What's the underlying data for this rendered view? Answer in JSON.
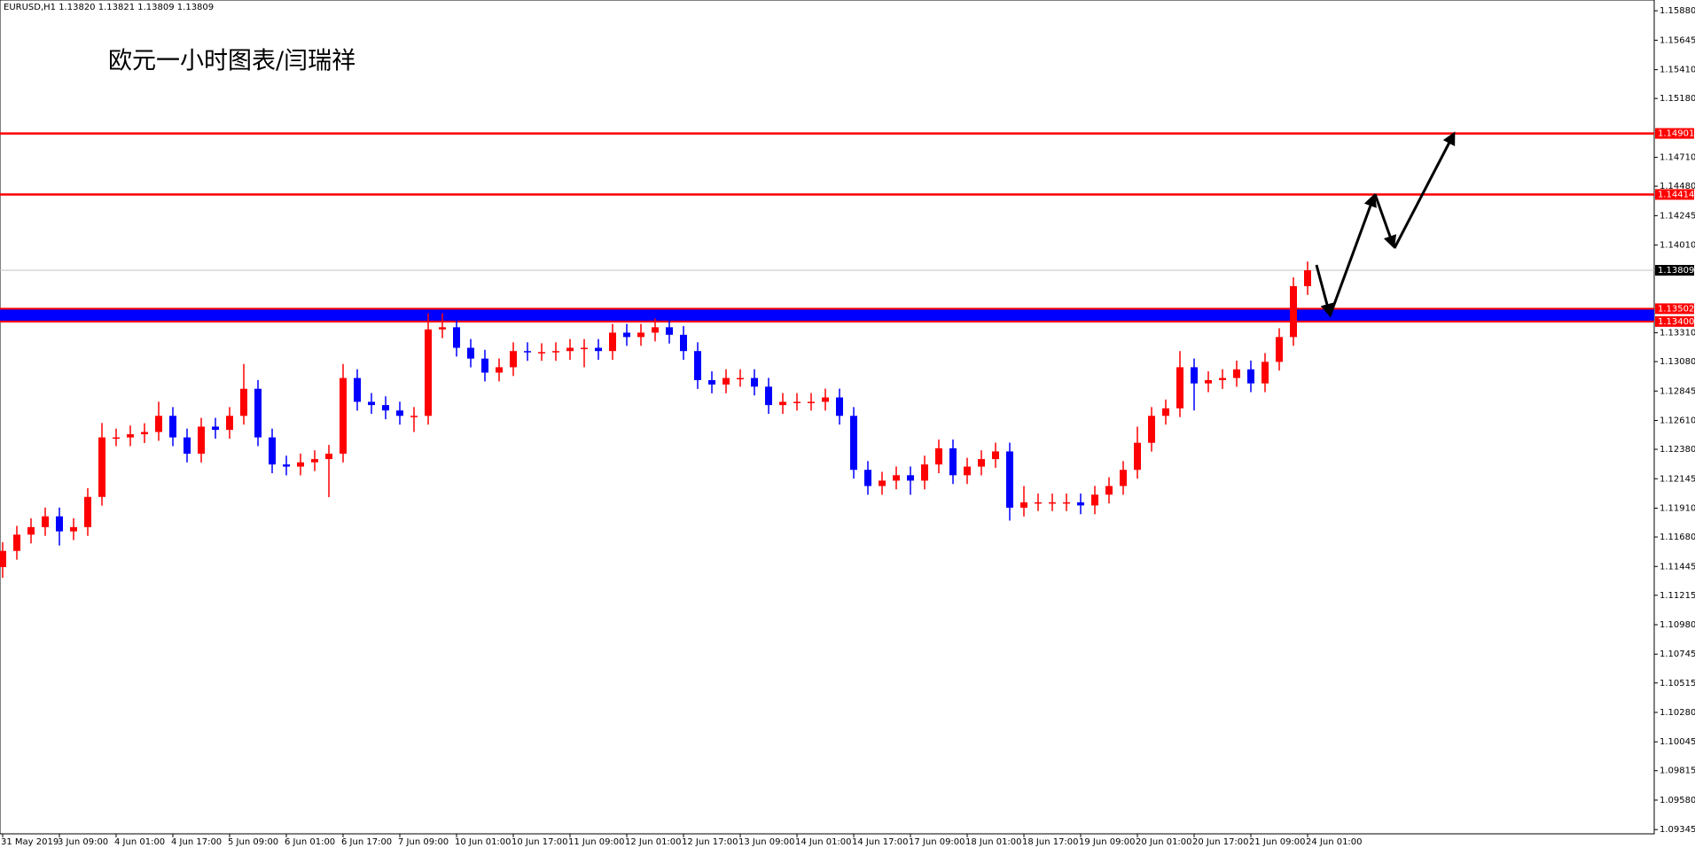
{
  "chart_data": {
    "type": "candlestick",
    "header": "EURUSD,H1  1.13820 1.13821 1.13809 1.13809",
    "annotation": "欧元一小时图表/闫瑞祥",
    "up_color": "#ff0000",
    "down_color": "#0000ff",
    "categories": [
      "31 May 2019",
      null,
      null,
      null,
      "3 Jun 09:00",
      null,
      null,
      null,
      "4 Jun 01:00",
      null,
      null,
      null,
      "4 Jun 17:00",
      null,
      null,
      null,
      "5 Jun 09:00",
      null,
      null,
      null,
      "6 Jun 01:00",
      null,
      null,
      null,
      "6 Jun 17:00",
      null,
      null,
      null,
      "7 Jun 09:00",
      null,
      null,
      null,
      "10 Jun 01:00",
      null,
      null,
      null,
      "10 Jun 17:00",
      null,
      null,
      null,
      "11 Jun 09:00",
      null,
      null,
      null,
      "12 Jun 01:00",
      null,
      null,
      null,
      "12 Jun 17:00",
      null,
      null,
      null,
      "13 Jun 09:00",
      null,
      null,
      null,
      "14 Jun 01:00",
      null,
      null,
      null,
      "14 Jun 17:00",
      null,
      null,
      null,
      "17 Jun 09:00",
      null,
      null,
      null,
      "18 Jun 01:00",
      null,
      null,
      null,
      "18 Jun 17:00",
      null,
      null,
      null,
      "19 Jun 09:00",
      null,
      null,
      null,
      "20 Jun 01:00",
      null,
      null,
      null,
      "20 Jun 17:00",
      null,
      null,
      null,
      "21 Jun 09:00",
      null,
      null,
      null,
      "24 Jun 01:00"
    ],
    "open": [
      1.1144,
      1.11569,
      1.11699,
      1.11759,
      1.11845,
      1.11725,
      1.11759,
      1.12,
      1.12475,
      1.12475,
      1.125,
      1.12518,
      1.12647,
      1.12475,
      1.12345,
      1.12561,
      1.12535,
      1.12647,
      1.12863,
      1.12475,
      1.12259,
      1.12242,
      1.12276,
      1.12302,
      1.12345,
      1.12949,
      1.12759,
      1.12733,
      1.1269,
      1.12647,
      1.12647,
      1.13337,
      1.13354,
      1.1319,
      1.13104,
      1.12992,
      1.13035,
      1.13164,
      1.13156,
      1.13156,
      1.13164,
      1.1319,
      1.1319,
      1.13164,
      1.13311,
      1.13276,
      1.13311,
      1.13354,
      1.13294,
      1.13164,
      1.12932,
      1.12897,
      1.12949,
      1.12949,
      1.1288,
      1.12733,
      1.12759,
      1.12759,
      1.12759,
      1.12794,
      1.12647,
      1.12216,
      1.12087,
      1.1213,
      1.12173,
      1.1213,
      1.12259,
      1.12388,
      1.12173,
      1.12242,
      1.12302,
      1.12363,
      1.11914,
      1.11957,
      1.11957,
      1.11957,
      1.11957,
      1.11932,
      1.12018,
      1.12087,
      1.12216,
      1.12432,
      1.12647,
      1.12707,
      1.13035,
      1.12906,
      1.12932,
      1.12949,
      1.13018,
      1.12906,
      1.13078,
      1.13276,
      1.13682
    ],
    "high": [
      1.11639,
      1.11769,
      1.11829,
      1.11915,
      1.11915,
      1.11829,
      1.1207,
      1.1259,
      1.12545,
      1.1257,
      1.12588,
      1.1276,
      1.12717,
      1.12545,
      1.12631,
      1.12631,
      1.12717,
      1.13061,
      1.12933,
      1.12545,
      1.12329,
      1.12346,
      1.12372,
      1.12415,
      1.13061,
      1.13019,
      1.12829,
      1.12803,
      1.1276,
      1.12717,
      1.13466,
      1.13466,
      1.13424,
      1.1326,
      1.13174,
      1.13105,
      1.13234,
      1.13234,
      1.13226,
      1.13234,
      1.1326,
      1.1326,
      1.1326,
      1.13381,
      1.13381,
      1.13381,
      1.13424,
      1.13424,
      1.13364,
      1.13234,
      1.13002,
      1.13019,
      1.13019,
      1.13019,
      1.1295,
      1.12829,
      1.12829,
      1.12829,
      1.12864,
      1.12864,
      1.12717,
      1.12286,
      1.122,
      1.12243,
      1.12243,
      1.12329,
      1.12458,
      1.12458,
      1.12312,
      1.12372,
      1.12433,
      1.12433,
      1.12087,
      1.12027,
      1.12027,
      1.12027,
      1.12027,
      1.12088,
      1.12157,
      1.12286,
      1.12561,
      1.12717,
      1.12777,
      1.13164,
      1.13105,
      1.13002,
      1.13019,
      1.13088,
      1.13088,
      1.13148,
      1.13346,
      1.13752,
      1.13879
    ],
    "low": [
      1.11354,
      1.11499,
      1.11629,
      1.11689,
      1.11612,
      1.11655,
      1.11689,
      1.1193,
      1.12405,
      1.12405,
      1.1243,
      1.12448,
      1.12405,
      1.12275,
      1.12275,
      1.12465,
      1.12465,
      1.12577,
      1.12405,
      1.12189,
      1.12172,
      1.12172,
      1.12206,
      1.11998,
      1.12275,
      1.12689,
      1.12663,
      1.1262,
      1.12577,
      1.12518,
      1.12577,
      1.13267,
      1.1312,
      1.13034,
      1.12922,
      1.12922,
      1.12965,
      1.13086,
      1.13086,
      1.13086,
      1.13094,
      1.13035,
      1.13094,
      1.13094,
      1.13206,
      1.13206,
      1.13241,
      1.13224,
      1.13094,
      1.12862,
      1.12827,
      1.12827,
      1.12879,
      1.1281,
      1.12663,
      1.12663,
      1.12689,
      1.12689,
      1.12689,
      1.12577,
      1.12146,
      1.12017,
      1.12017,
      1.1206,
      1.12017,
      1.1206,
      1.12189,
      1.12103,
      1.12103,
      1.12172,
      1.12232,
      1.11811,
      1.11844,
      1.11887,
      1.11887,
      1.11887,
      1.11862,
      1.11862,
      1.11948,
      1.12017,
      1.12146,
      1.12362,
      1.12577,
      1.12637,
      1.1269,
      1.12836,
      1.12862,
      1.12879,
      1.12836,
      1.12836,
      1.13008,
      1.13206,
      1.13612
    ],
    "close": [
      1.11569,
      1.11699,
      1.11759,
      1.11845,
      1.11725,
      1.11759,
      1.12,
      1.12475,
      1.12475,
      1.125,
      1.12518,
      1.12647,
      1.12475,
      1.12345,
      1.12561,
      1.12535,
      1.12647,
      1.12863,
      1.12475,
      1.12259,
      1.12242,
      1.12276,
      1.12302,
      1.12345,
      1.12949,
      1.12759,
      1.12733,
      1.1269,
      1.12647,
      1.12647,
      1.13337,
      1.13354,
      1.1319,
      1.13104,
      1.12992,
      1.13035,
      1.13164,
      1.13156,
      1.13156,
      1.13164,
      1.1319,
      1.1319,
      1.13164,
      1.13311,
      1.13276,
      1.13311,
      1.13354,
      1.13294,
      1.13164,
      1.12932,
      1.12897,
      1.12949,
      1.12949,
      1.1288,
      1.12733,
      1.12759,
      1.12759,
      1.12759,
      1.12794,
      1.12647,
      1.12216,
      1.12087,
      1.1213,
      1.12173,
      1.1213,
      1.12259,
      1.12388,
      1.12173,
      1.12242,
      1.12302,
      1.12363,
      1.11914,
      1.11957,
      1.11957,
      1.11957,
      1.11957,
      1.11932,
      1.12018,
      1.12087,
      1.12216,
      1.12432,
      1.12647,
      1.12707,
      1.13035,
      1.12906,
      1.12932,
      1.12949,
      1.13018,
      1.12906,
      1.13078,
      1.13276,
      1.13682,
      1.13809
    ],
    "ylim": [
      1.09311,
      1.15966
    ],
    "yticks": [
      {
        "value": 1.1588,
        "label": "1.15880"
      },
      1.15645,
      {
        "value": 1.1541,
        "label": "1.15410"
      },
      {
        "value": 1.1518,
        "label": "1.15180"
      },
      {
        "value": 1.1471,
        "label": "1.14710"
      },
      {
        "value": 1.1448,
        "label": "1.14480"
      },
      1.14245,
      {
        "value": 1.1401,
        "label": "1.14010"
      },
      {
        "value": 1.1331,
        "label": "1.13310"
      },
      {
        "value": 1.1308,
        "label": "1.13080"
      },
      1.12845,
      {
        "value": 1.1261,
        "label": "1.12610"
      },
      {
        "value": 1.1238,
        "label": "1.12380"
      },
      1.12145,
      {
        "value": 1.1191,
        "label": "1.11910"
      },
      {
        "value": 1.1168,
        "label": "1.11680"
      },
      1.11445,
      1.11215,
      {
        "value": 1.1098,
        "label": "1.10980"
      },
      1.10745,
      1.10515,
      {
        "value": 1.1028,
        "label": "1.10280"
      },
      1.10045,
      1.09815,
      {
        "value": 1.0958,
        "label": "1.09580"
      },
      1.09345
    ],
    "levels": [
      {
        "value": 1.14901,
        "color": "#ff0000"
      },
      {
        "value": 1.14414,
        "color": "#ff0000"
      }
    ],
    "band": {
      "range": [
        {
          "value": 1.134,
          "label": "1.13400"
        },
        1.13502
      ],
      "color": "#0000ff",
      "edge_color": "#ff0000"
    },
    "current_price": 1.13809
  }
}
